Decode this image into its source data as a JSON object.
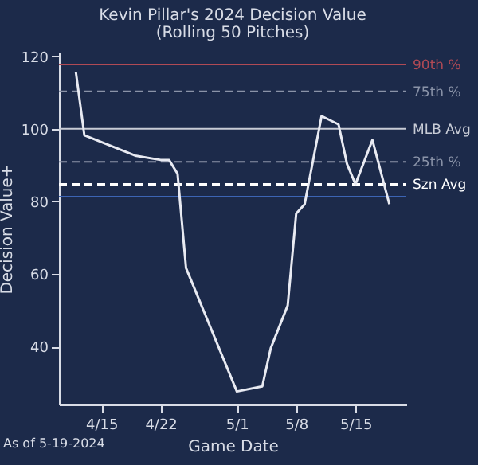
{
  "chart_data": {
    "type": "line",
    "title": "Kevin Pillar's 2024 Decision Value",
    "subtitle": "(Rolling 50 Pitches)",
    "xlabel": "Game Date",
    "ylabel": "Decision Value+",
    "x": [
      "2024-04-12",
      "2024-04-13",
      "2024-04-19",
      "2024-04-22",
      "2024-04-23",
      "2024-04-24",
      "2024-04-25",
      "2024-05-01",
      "2024-05-04",
      "2024-05-05",
      "2024-05-07",
      "2024-05-08",
      "2024-05-09",
      "2024-05-11",
      "2024-05-13",
      "2024-05-14",
      "2024-05-15",
      "2024-05-17",
      "2024-05-19"
    ],
    "series": [
      {
        "color": "#e8eaf2",
        "values": [
          115.6,
          98.2,
          92.6,
          91.4,
          91.4,
          87.6,
          61.6,
          27.6,
          29,
          39.5,
          51.3,
          76.6,
          79.2,
          103.5,
          101.2,
          90.3,
          84.7,
          96.9,
          79.2
        ]
      }
    ],
    "xlim": [
      "2024-04-10",
      "2024-05-21"
    ],
    "xticks": [
      {
        "value": "2024-04-15",
        "label": "4/15"
      },
      {
        "value": "2024-04-22",
        "label": "4/22"
      },
      {
        "value": "2024-05-01",
        "label": "5/1"
      },
      {
        "value": "2024-05-08",
        "label": "5/8"
      },
      {
        "value": "2024-05-15",
        "label": "5/15"
      }
    ],
    "ylim": [
      24,
      121
    ],
    "yticks": [
      40,
      60,
      80,
      100,
      120
    ],
    "grid": false,
    "ref_lines": [
      {
        "axis": "y",
        "value": 117.7,
        "label": "90th %",
        "color": "#b04a55",
        "line_style": "solid"
      },
      {
        "axis": "y",
        "value": 110.3,
        "label": "75th %",
        "color": "#8a93a8",
        "line_style": "dashed"
      },
      {
        "axis": "y",
        "value": 100,
        "label": "MLB Avg",
        "color": "#c8ccd6",
        "line_style": "solid"
      },
      {
        "axis": "y",
        "value": 90.9,
        "label": "25th %",
        "color": "#8a93a8",
        "line_style": "dashed"
      },
      {
        "axis": "y",
        "value": 84.7,
        "label": "Szn Avg",
        "color": "#ffffff",
        "line_style": "dashed"
      },
      {
        "axis": "y",
        "value": 81.3,
        "label": null,
        "color": "#3c64b4",
        "line_style": "solid"
      }
    ],
    "annotations": [
      "As of 5-19-2024"
    ]
  }
}
